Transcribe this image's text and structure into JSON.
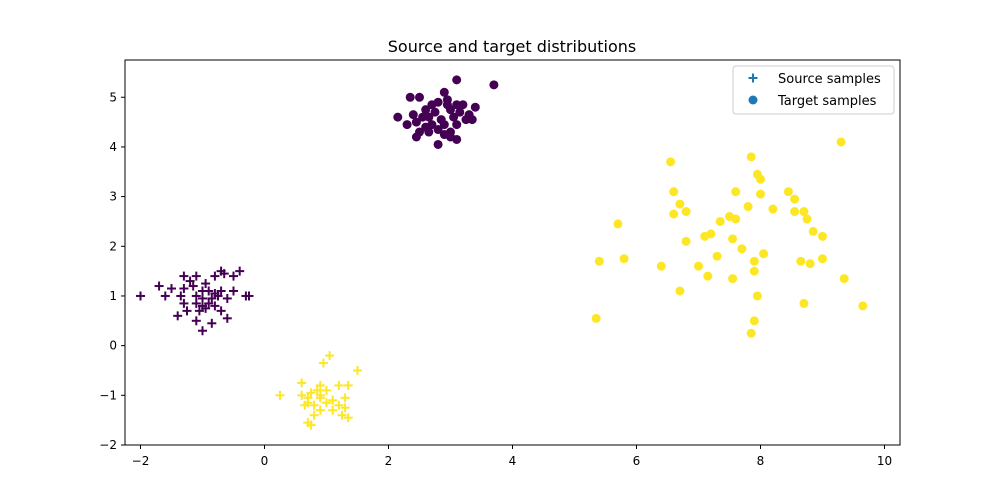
{
  "chart_data": {
    "type": "scatter",
    "title": "Source and target distributions",
    "xlabel": "",
    "ylabel": "",
    "xlim": [
      -2.25,
      10.25
    ],
    "ylim": [
      -2.0,
      5.75
    ],
    "xticks": [
      -2,
      0,
      2,
      4,
      6,
      8,
      10
    ],
    "xtick_labels": [
      "−2",
      "0",
      "2",
      "4",
      "6",
      "8",
      "10"
    ],
    "yticks": [
      -2,
      -1,
      0,
      1,
      2,
      3,
      4,
      5
    ],
    "ytick_labels": [
      "−2",
      "−1",
      "0",
      "1",
      "2",
      "3",
      "4",
      "5"
    ],
    "grid": false,
    "legend_position": "top-right",
    "colors": {
      "purple": "#440154",
      "yellow": "#fde725",
      "legend_marker": "#1f77b4"
    },
    "legend": [
      {
        "label": "Source samples",
        "marker": "plus"
      },
      {
        "label": "Target samples",
        "marker": "circle"
      }
    ],
    "series": [
      {
        "name": "Source samples",
        "marker": "plus",
        "color": "purple",
        "points": [
          [
            -1.3,
            1.4
          ],
          [
            -1.2,
            1.3
          ],
          [
            -1.1,
            1.4
          ],
          [
            -0.8,
            1.4
          ],
          [
            -0.7,
            1.5
          ],
          [
            -0.5,
            1.4
          ],
          [
            -0.4,
            1.5
          ],
          [
            -1.5,
            1.15
          ],
          [
            -1.3,
            1.15
          ],
          [
            -1.0,
            1.1
          ],
          [
            -0.9,
            1.1
          ],
          [
            -0.8,
            1.05
          ],
          [
            -0.7,
            1.1
          ],
          [
            -0.5,
            1.1
          ],
          [
            -0.3,
            1.0
          ],
          [
            -1.6,
            1.0
          ],
          [
            -1.35,
            1.0
          ],
          [
            -1.1,
            1.0
          ],
          [
            -1.0,
            0.95
          ],
          [
            -0.85,
            0.95
          ],
          [
            -0.75,
            1.0
          ],
          [
            -0.6,
            0.95
          ],
          [
            -1.3,
            0.85
          ],
          [
            -1.1,
            0.85
          ],
          [
            -1.0,
            0.8
          ],
          [
            -0.9,
            0.85
          ],
          [
            -0.8,
            0.8
          ],
          [
            -1.25,
            0.7
          ],
          [
            -1.05,
            0.7
          ],
          [
            -0.95,
            0.75
          ],
          [
            -0.7,
            0.7
          ],
          [
            -1.4,
            0.6
          ],
          [
            -0.6,
            0.55
          ],
          [
            -1.1,
            0.5
          ],
          [
            -0.85,
            0.45
          ],
          [
            -1.0,
            0.3
          ],
          [
            -2.0,
            1.0
          ],
          [
            -1.7,
            1.2
          ],
          [
            -0.65,
            1.45
          ],
          [
            -1.15,
            1.2
          ],
          [
            -0.95,
            1.25
          ],
          [
            -0.25,
            1.0
          ]
        ]
      },
      {
        "name": "Source samples",
        "marker": "plus",
        "color": "yellow",
        "points": [
          [
            1.05,
            -0.2
          ],
          [
            0.95,
            -0.35
          ],
          [
            1.5,
            -0.5
          ],
          [
            0.6,
            -0.75
          ],
          [
            0.9,
            -0.8
          ],
          [
            1.2,
            -0.8
          ],
          [
            1.35,
            -0.8
          ],
          [
            0.75,
            -0.95
          ],
          [
            0.85,
            -0.9
          ],
          [
            1.0,
            -0.9
          ],
          [
            0.25,
            -1.0
          ],
          [
            0.6,
            -1.0
          ],
          [
            0.7,
            -1.05
          ],
          [
            0.9,
            -1.0
          ],
          [
            1.1,
            -1.1
          ],
          [
            1.3,
            -1.05
          ],
          [
            0.7,
            -1.15
          ],
          [
            0.8,
            -1.2
          ],
          [
            1.0,
            -1.15
          ],
          [
            1.2,
            -1.2
          ],
          [
            1.3,
            -1.25
          ],
          [
            0.65,
            -1.2
          ],
          [
            0.9,
            -1.3
          ],
          [
            1.1,
            -1.3
          ],
          [
            0.8,
            -1.4
          ],
          [
            1.25,
            -1.4
          ],
          [
            1.35,
            -1.45
          ],
          [
            0.7,
            -1.55
          ],
          [
            0.75,
            -1.6
          ],
          [
            0.9,
            -1.05
          ]
        ]
      },
      {
        "name": "Target samples",
        "marker": "circle",
        "color": "purple",
        "points": [
          [
            3.1,
            5.35
          ],
          [
            3.7,
            5.25
          ],
          [
            2.35,
            5.0
          ],
          [
            2.5,
            5.0
          ],
          [
            2.9,
            5.1
          ],
          [
            2.7,
            4.85
          ],
          [
            2.8,
            4.9
          ],
          [
            2.95,
            4.85
          ],
          [
            3.1,
            4.85
          ],
          [
            3.2,
            4.85
          ],
          [
            3.4,
            4.8
          ],
          [
            2.6,
            4.75
          ],
          [
            2.75,
            4.7
          ],
          [
            3.0,
            4.75
          ],
          [
            3.15,
            4.7
          ],
          [
            3.3,
            4.65
          ],
          [
            2.15,
            4.6
          ],
          [
            2.4,
            4.65
          ],
          [
            2.55,
            4.6
          ],
          [
            2.85,
            4.55
          ],
          [
            3.05,
            4.6
          ],
          [
            3.25,
            4.55
          ],
          [
            3.35,
            4.55
          ],
          [
            2.45,
            4.5
          ],
          [
            2.7,
            4.45
          ],
          [
            2.9,
            4.45
          ],
          [
            3.1,
            4.45
          ],
          [
            2.3,
            4.45
          ],
          [
            2.6,
            4.4
          ],
          [
            2.8,
            4.35
          ],
          [
            3.0,
            4.3
          ],
          [
            2.5,
            4.3
          ],
          [
            2.65,
            4.3
          ],
          [
            2.9,
            4.25
          ],
          [
            2.45,
            4.2
          ],
          [
            3.1,
            4.15
          ],
          [
            2.8,
            4.05
          ],
          [
            2.65,
            4.6
          ],
          [
            2.95,
            4.95
          ],
          [
            3.0,
            4.2
          ]
        ]
      },
      {
        "name": "Target samples",
        "marker": "circle",
        "color": "yellow",
        "points": [
          [
            9.3,
            4.1
          ],
          [
            7.85,
            3.8
          ],
          [
            6.55,
            3.7
          ],
          [
            7.95,
            3.45
          ],
          [
            8.0,
            3.35
          ],
          [
            6.6,
            3.1
          ],
          [
            7.6,
            3.1
          ],
          [
            8.0,
            3.05
          ],
          [
            8.45,
            3.1
          ],
          [
            8.55,
            2.95
          ],
          [
            6.7,
            2.85
          ],
          [
            7.8,
            2.8
          ],
          [
            8.2,
            2.75
          ],
          [
            6.6,
            2.65
          ],
          [
            6.8,
            2.7
          ],
          [
            8.55,
            2.7
          ],
          [
            8.7,
            2.7
          ],
          [
            7.5,
            2.6
          ],
          [
            7.35,
            2.5
          ],
          [
            7.6,
            2.55
          ],
          [
            8.75,
            2.55
          ],
          [
            5.7,
            2.45
          ],
          [
            8.85,
            2.3
          ],
          [
            7.1,
            2.2
          ],
          [
            7.2,
            2.25
          ],
          [
            7.55,
            2.15
          ],
          [
            9.0,
            2.2
          ],
          [
            6.8,
            2.1
          ],
          [
            7.7,
            1.95
          ],
          [
            7.3,
            1.8
          ],
          [
            8.05,
            1.85
          ],
          [
            5.8,
            1.75
          ],
          [
            7.9,
            1.7
          ],
          [
            8.65,
            1.7
          ],
          [
            9.0,
            1.75
          ],
          [
            5.4,
            1.7
          ],
          [
            8.8,
            1.65
          ],
          [
            6.4,
            1.6
          ],
          [
            7.0,
            1.6
          ],
          [
            7.9,
            1.5
          ],
          [
            7.15,
            1.4
          ],
          [
            7.55,
            1.35
          ],
          [
            9.35,
            1.35
          ],
          [
            6.7,
            1.1
          ],
          [
            7.95,
            1.0
          ],
          [
            8.7,
            0.85
          ],
          [
            9.65,
            0.8
          ],
          [
            5.35,
            0.55
          ],
          [
            7.9,
            0.5
          ],
          [
            7.85,
            0.25
          ]
        ]
      }
    ]
  }
}
